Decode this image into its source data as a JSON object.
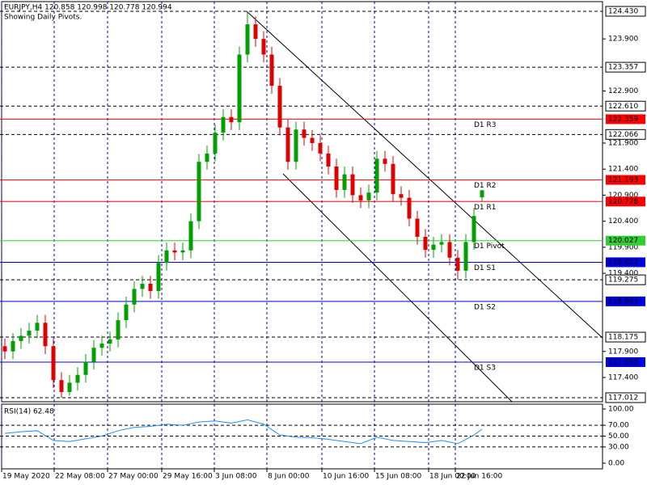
{
  "chart_data": {
    "type": "candlestick",
    "title": "EURJPY,H4  120.858 120.998 120.778 120.994",
    "subtitle": "Showing Daily Pivots.",
    "up_color": "#00a000",
    "down_color": "#e00000",
    "xlim": [
      -0.6,
      73.9
    ],
    "ylim": [
      116.934,
      124.616
    ],
    "xticks": [
      {
        "value": -0.4,
        "label": "19 May 2020"
      },
      {
        "value": 6.1,
        "label": "22 May 08:00"
      },
      {
        "value": 12.7,
        "label": "27 May 00:00"
      },
      {
        "value": 19.4,
        "label": "29 May 16:00"
      },
      {
        "value": 25.9,
        "label": "3 Jun 08:00"
      },
      {
        "value": 32.4,
        "label": "8 Jun 00:00"
      },
      {
        "value": 39.2,
        "label": "10 Jun 16:00"
      },
      {
        "value": 45.7,
        "label": "15 Jun 08:00"
      },
      {
        "value": 52.4,
        "label": "18 Jun 00:00"
      },
      {
        "value": 55.7,
        "label": "22 Jun 16:00"
      }
    ],
    "yticks": [
      {
        "value": 123.9,
        "label": "123.900"
      },
      {
        "value": 122.9,
        "label": "122.900"
      },
      {
        "value": 121.9,
        "label": "121.900"
      },
      {
        "value": 121.4,
        "label": "121.400"
      },
      {
        "value": 120.9,
        "label": "120.900"
      },
      {
        "value": 120.4,
        "label": "120.400"
      },
      {
        "value": 119.9,
        "label": "119.900"
      },
      {
        "value": 119.4,
        "label": "119.400"
      },
      {
        "value": 117.9,
        "label": "117.900"
      },
      {
        "value": 117.4,
        "label": "117.400"
      }
    ],
    "levels": [
      {
        "value": 124.43,
        "label": "124.430"
      },
      {
        "value": 123.357,
        "label": "123.357"
      },
      {
        "value": 122.61,
        "label": "122.610"
      },
      {
        "value": 122.066,
        "label": "122.066"
      },
      {
        "value": 119.275,
        "label": "119.275"
      },
      {
        "value": 118.175,
        "label": "118.175"
      },
      {
        "value": 117.012,
        "label": "117.012"
      }
    ],
    "pivots": [
      {
        "name": "D1 R3",
        "value": 122.359,
        "label": "122.359",
        "color": "#ff0000"
      },
      {
        "name": "D1 R2",
        "value": 121.193,
        "label": "121.193",
        "color": "#ff0000"
      },
      {
        "name": "D1 R1",
        "value": 120.778,
        "label": "120.778",
        "color": "#ff0000"
      },
      {
        "name": "D1 Pivot",
        "value": 120.027,
        "label": "120.027",
        "color": "#32cd32"
      },
      {
        "name": "D1 S1",
        "value": 119.612,
        "label": "119.612",
        "color": "#0000dd"
      },
      {
        "name": "D1 S2",
        "value": 118.861,
        "label": "118.861",
        "color": "#0000dd"
      },
      {
        "name": "D1 S3",
        "value": 117.695,
        "label": "117.695",
        "color": "#0000dd"
      }
    ],
    "open": [
      118.0,
      117.9,
      118.1,
      118.2,
      118.3,
      118.45,
      118.0,
      117.35,
      117.12,
      117.3,
      117.45,
      117.7,
      117.97,
      118.05,
      118.13,
      118.5,
      118.8,
      119.1,
      119.2,
      119.06,
      119.6,
      119.84,
      119.8,
      119.84,
      120.4,
      121.54,
      121.7,
      122.1,
      122.4,
      122.3,
      123.6,
      124.18,
      123.9,
      123.6,
      123.0,
      122.2,
      121.54,
      122.16,
      122.0,
      121.9,
      121.7,
      121.45,
      121.0,
      121.3,
      120.9,
      120.8,
      120.95,
      121.6,
      121.5,
      120.92,
      120.85,
      120.45,
      120.1,
      119.85,
      119.95,
      120.0,
      119.7,
      119.45,
      120.0,
      120.858
    ],
    "high": [
      118.15,
      118.25,
      118.35,
      118.45,
      118.6,
      118.6,
      118.15,
      117.5,
      117.45,
      117.6,
      117.85,
      118.12,
      118.2,
      118.28,
      118.65,
      118.95,
      119.25,
      119.35,
      119.35,
      119.75,
      119.99,
      119.99,
      119.99,
      120.55,
      121.69,
      121.85,
      122.25,
      122.55,
      122.55,
      123.75,
      124.43,
      124.33,
      124.05,
      123.75,
      123.15,
      122.35,
      122.31,
      122.31,
      122.15,
      122.05,
      121.85,
      121.6,
      121.45,
      121.45,
      121.05,
      121.1,
      121.75,
      121.75,
      121.65,
      121.07,
      121.0,
      120.6,
      120.25,
      120.1,
      120.15,
      120.15,
      119.85,
      120.15,
      120.65,
      120.998
    ],
    "low": [
      117.75,
      117.75,
      117.95,
      118.05,
      118.15,
      117.85,
      117.2,
      117.012,
      117.05,
      117.15,
      117.3,
      117.55,
      117.82,
      117.9,
      117.98,
      118.35,
      118.65,
      118.95,
      118.91,
      118.91,
      119.45,
      119.65,
      119.65,
      119.69,
      120.25,
      121.39,
      121.55,
      121.95,
      122.15,
      122.15,
      123.45,
      123.75,
      123.45,
      122.85,
      122.05,
      121.39,
      121.39,
      121.85,
      121.75,
      121.55,
      121.3,
      120.85,
      120.85,
      120.75,
      120.65,
      120.65,
      120.8,
      121.35,
      120.77,
      120.7,
      120.3,
      119.95,
      119.7,
      119.7,
      119.8,
      119.55,
      119.275,
      119.3,
      119.85,
      120.778
    ],
    "close": [
      117.9,
      118.1,
      118.2,
      118.3,
      118.45,
      118.0,
      117.35,
      117.12,
      117.3,
      117.45,
      117.7,
      117.97,
      118.05,
      118.13,
      118.5,
      118.8,
      119.1,
      119.2,
      119.06,
      119.6,
      119.84,
      119.8,
      119.84,
      120.4,
      121.54,
      121.7,
      122.1,
      122.4,
      122.3,
      123.6,
      124.18,
      123.9,
      123.6,
      123.0,
      122.2,
      121.54,
      122.16,
      122.0,
      121.9,
      121.7,
      121.45,
      121.0,
      121.3,
      120.9,
      120.8,
      120.95,
      121.6,
      121.5,
      120.92,
      120.85,
      120.45,
      120.1,
      119.85,
      119.95,
      120.0,
      119.7,
      119.45,
      120.0,
      120.5,
      120.994
    ],
    "rsi": {
      "title": "RSI(14) 62.48",
      "color": "#1e90ff",
      "ylim": [
        -10.4,
        108.96
      ],
      "yticks": [
        {
          "value": 100,
          "label": "100.00"
        },
        {
          "value": 70,
          "label": "70.00"
        },
        {
          "value": 50,
          "label": "50.00"
        },
        {
          "value": 30,
          "label": "30.00"
        },
        {
          "value": 0,
          "label": "0.00"
        }
      ],
      "levels": [
        70,
        50,
        30
      ],
      "x": [
        0,
        2,
        4,
        6,
        8,
        10,
        12,
        14,
        16,
        18,
        20,
        22,
        24,
        26,
        28,
        30,
        32,
        34,
        36,
        38,
        40,
        42,
        44,
        46,
        48,
        50,
        52,
        54,
        56,
        58,
        59
      ],
      "values": [
        55,
        58,
        60,
        42,
        40,
        45,
        50,
        60,
        66,
        68,
        72,
        70,
        76,
        78,
        74,
        80,
        72,
        52,
        48,
        47,
        44,
        40,
        36,
        48,
        42,
        40,
        38,
        42,
        36,
        52,
        62.48
      ]
    }
  }
}
